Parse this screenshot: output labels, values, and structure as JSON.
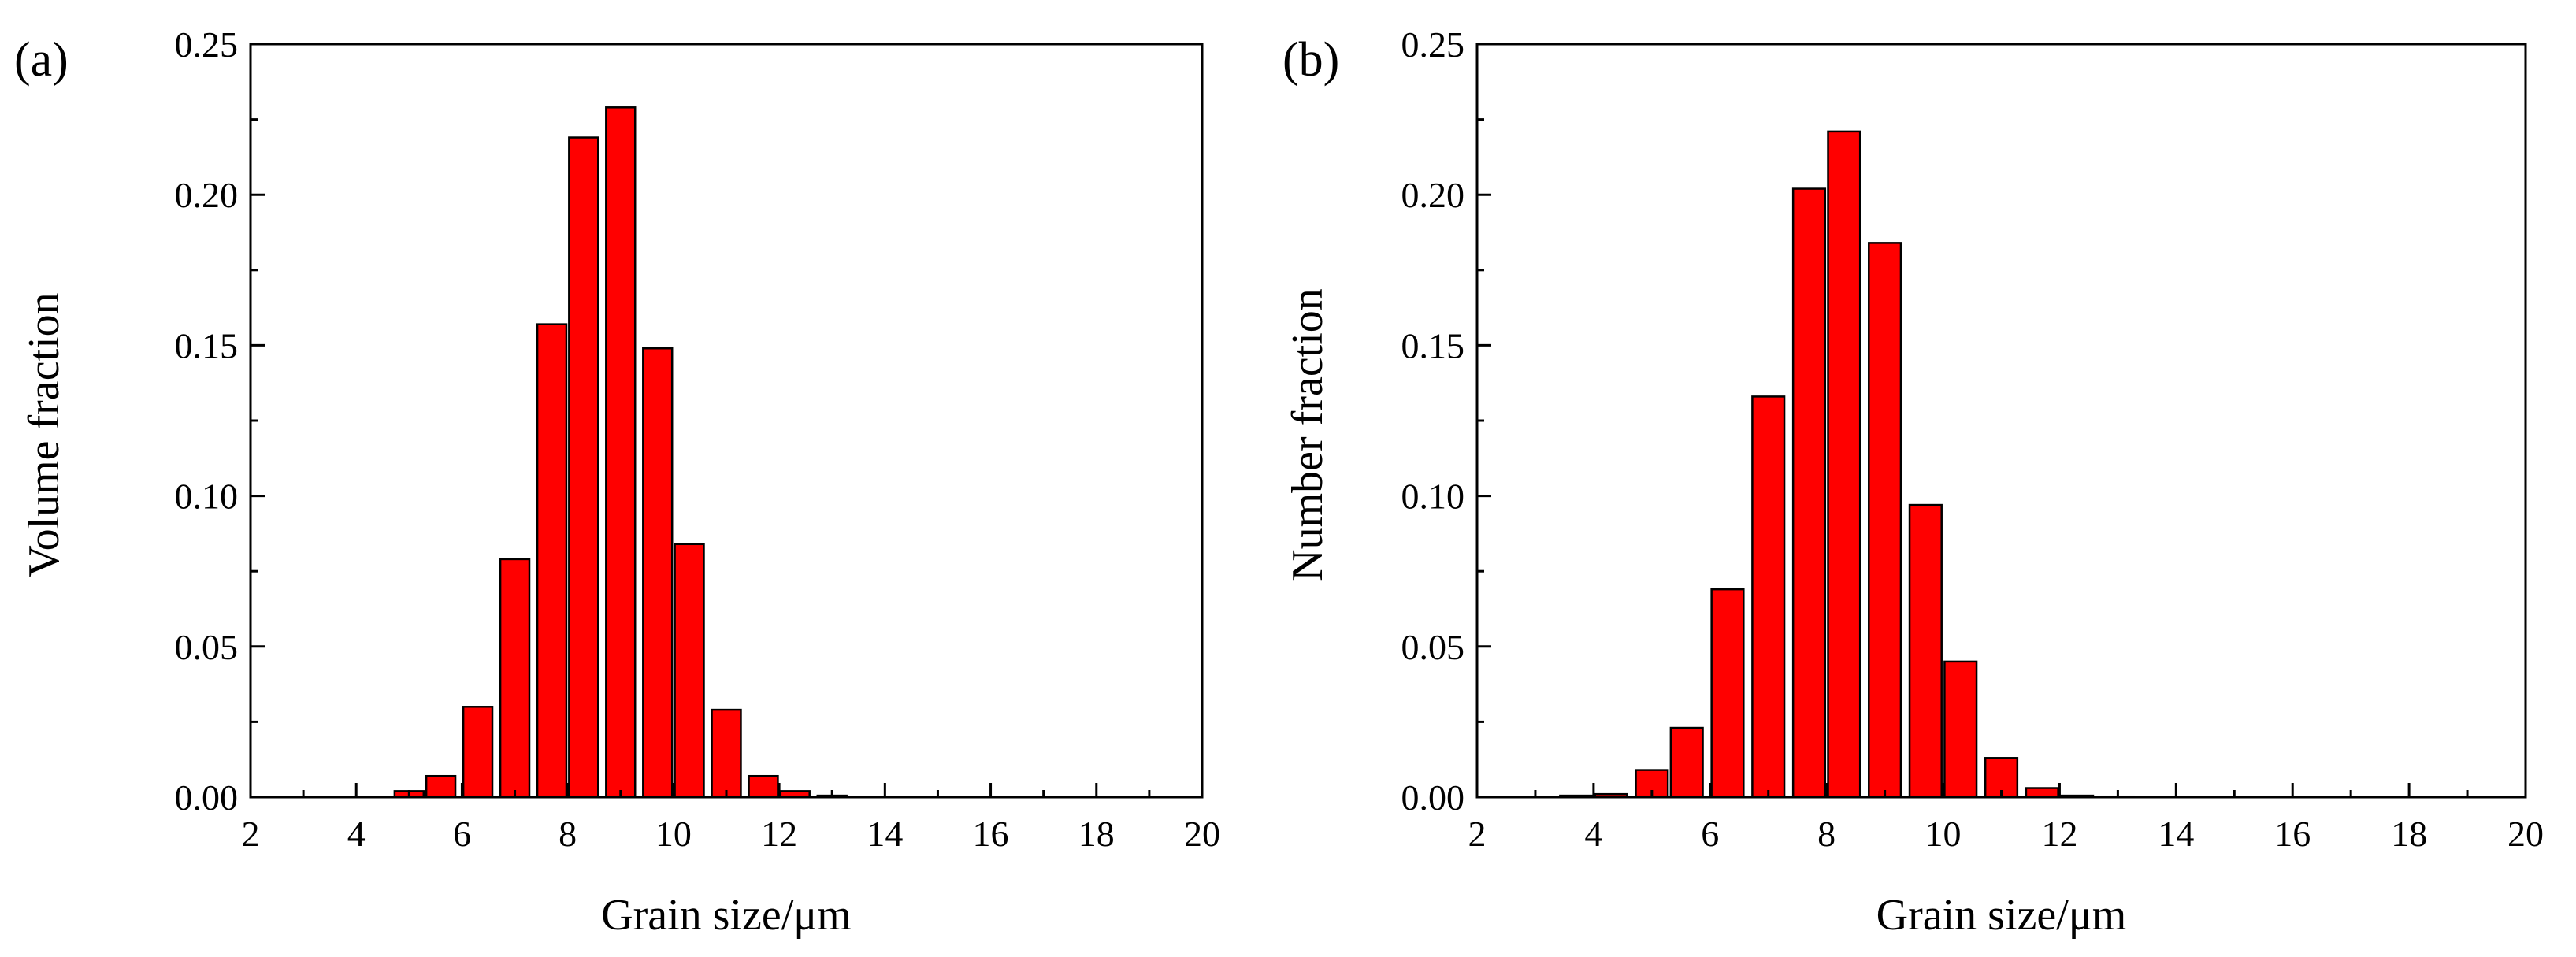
{
  "chart_data": [
    {
      "type": "bar",
      "panel_label": "(a)",
      "xlabel": "Grain size/μm",
      "ylabel": "Volume fraction",
      "xlim": [
        2,
        20
      ],
      "ylim": [
        0,
        0.25
      ],
      "x_ticks": [
        2,
        4,
        6,
        8,
        10,
        12,
        14,
        16,
        18,
        20
      ],
      "x_tick_labels": [
        "2",
        "4",
        "6",
        "8",
        "10",
        "12",
        "14",
        "16",
        "18",
        "20"
      ],
      "y_ticks": [
        0,
        0.05,
        0.1,
        0.15,
        0.2,
        0.25
      ],
      "y_tick_labels": [
        "0.00",
        "0.05",
        "0.10",
        "0.15",
        "0.20",
        "0.25"
      ],
      "bar_width": 0.55,
      "bar_color": "#ff0000",
      "x": [
        5.0,
        5.6,
        6.3,
        7.0,
        7.7,
        8.3,
        9.0,
        9.7,
        10.3,
        11.0,
        11.7,
        12.3,
        13.0
      ],
      "values": [
        0.002,
        0.007,
        0.03,
        0.079,
        0.157,
        0.219,
        0.229,
        0.149,
        0.084,
        0.029,
        0.007,
        0.002,
        0.0005
      ]
    },
    {
      "type": "bar",
      "panel_label": "(b)",
      "xlabel": "Grain size/μm",
      "ylabel": "Number fraction",
      "xlim": [
        2,
        20
      ],
      "ylim": [
        0,
        0.25
      ],
      "x_ticks": [
        2,
        4,
        6,
        8,
        10,
        12,
        14,
        16,
        18,
        20
      ],
      "x_tick_labels": [
        "2",
        "4",
        "6",
        "8",
        "10",
        "12",
        "14",
        "16",
        "18",
        "20"
      ],
      "y_ticks": [
        0,
        0.05,
        0.1,
        0.15,
        0.2,
        0.25
      ],
      "y_tick_labels": [
        "0.00",
        "0.05",
        "0.10",
        "0.15",
        "0.20",
        "0.25"
      ],
      "bar_width": 0.55,
      "bar_color": "#ff0000",
      "x": [
        3.7,
        4.3,
        5.0,
        5.6,
        6.3,
        7.0,
        7.7,
        8.3,
        9.0,
        9.7,
        10.3,
        11.0,
        11.7,
        12.3,
        13.0
      ],
      "values": [
        0.0005,
        0.001,
        0.009,
        0.023,
        0.069,
        0.133,
        0.202,
        0.221,
        0.184,
        0.097,
        0.045,
        0.013,
        0.003,
        0.0005,
        0.0002
      ]
    }
  ]
}
